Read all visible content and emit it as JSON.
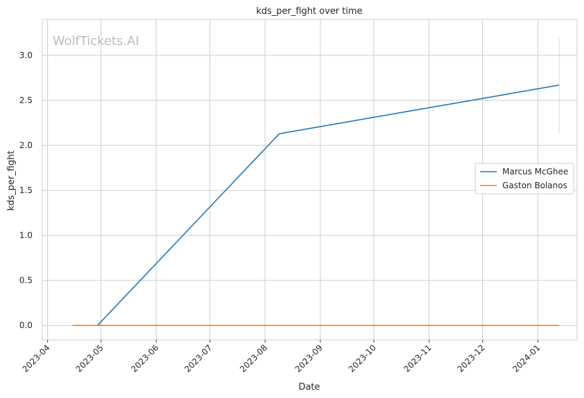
{
  "chart_data": {
    "type": "line",
    "title": "kds_per_fight over time",
    "xlabel": "Date",
    "ylabel": "kds_per_fight",
    "watermark": "WolfTickets.AI",
    "xlim": [
      "2023-03-29",
      "2024-01-23"
    ],
    "ylim": [
      -0.16,
      3.4
    ],
    "x_ticks": [
      "2023-04-01",
      "2023-05-01",
      "2023-06-01",
      "2023-07-01",
      "2023-08-01",
      "2023-09-01",
      "2023-10-01",
      "2023-11-01",
      "2023-12-01",
      "2024-01-01"
    ],
    "x_tick_labels": [
      "2023-04",
      "2023-05",
      "2023-06",
      "2023-07",
      "2023-08",
      "2023-09",
      "2023-10",
      "2023-11",
      "2023-12",
      "2024-01"
    ],
    "y_ticks": [
      0.0,
      0.5,
      1.0,
      1.5,
      2.0,
      2.5,
      3.0
    ],
    "y_tick_labels": [
      "0.0",
      "0.5",
      "1.0",
      "1.5",
      "2.0",
      "2.5",
      "3.0"
    ],
    "grid": true,
    "legend_position": "center-right",
    "series": [
      {
        "name": "Marcus McGhee",
        "color": "#1f77b4",
        "x": [
          "2023-04-29",
          "2023-08-09",
          "2024-01-13"
        ],
        "y": [
          0.0,
          2.13,
          2.67
        ]
      },
      {
        "name": "Gaston Bolanos",
        "color": "#ff7f0e",
        "x": [
          "2023-04-15",
          "2024-01-13"
        ],
        "y": [
          0.0,
          0.0
        ]
      }
    ],
    "error_bar": {
      "x": "2024-01-13",
      "low": 2.13,
      "high": 3.2,
      "color": "#8fd9c0"
    }
  }
}
